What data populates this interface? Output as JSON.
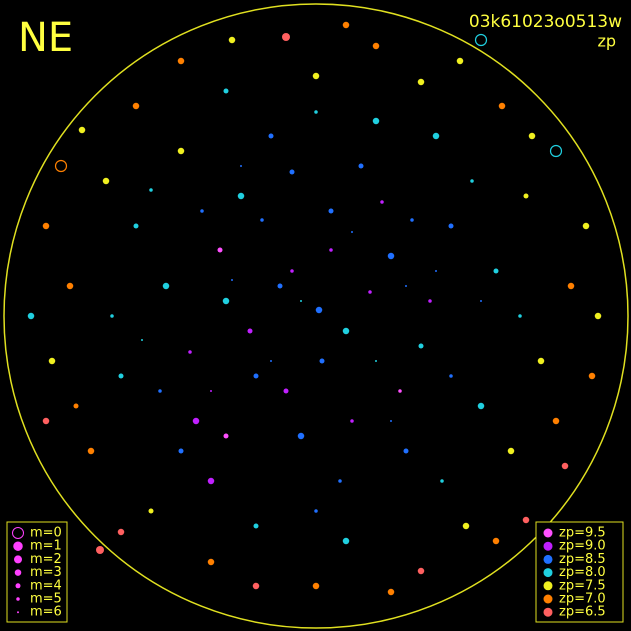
{
  "header": {
    "title": "NE",
    "frame": "03k61023o0513w",
    "mode": "zp"
  },
  "legend_m": [
    {
      "label": "m=0",
      "m": 0
    },
    {
      "label": "m=1",
      "m": 1
    },
    {
      "label": "m=2",
      "m": 2
    },
    {
      "label": "m=3",
      "m": 3
    },
    {
      "label": "m=4",
      "m": 4
    },
    {
      "label": "m=5",
      "m": 5
    },
    {
      "label": "m=6",
      "m": 6
    }
  ],
  "legend_zp": [
    {
      "label": "zp=9.5",
      "zp": 9.5,
      "color": "#ff50ff"
    },
    {
      "label": "zp=9.0",
      "zp": 9.0,
      "color": "#c020ff"
    },
    {
      "label": "zp=8.5",
      "zp": 8.5,
      "color": "#2070ff"
    },
    {
      "label": "zp=8.0",
      "zp": 8.0,
      "color": "#20d0e0"
    },
    {
      "label": "zp=7.5",
      "zp": 7.5,
      "color": "#f0f020"
    },
    {
      "label": "zp=7.0",
      "zp": 7.0,
      "color": "#ff8000"
    },
    {
      "label": "zp=6.5",
      "zp": 6.5,
      "color": "#ff6060"
    }
  ],
  "stars": [
    [
      0.01,
      0.02,
      3,
      8.5
    ],
    [
      -0.12,
      0.1,
      4,
      8.5
    ],
    [
      0.1,
      -0.05,
      3,
      8.0
    ],
    [
      -0.2,
      -0.2,
      4,
      8.5
    ],
    [
      0.25,
      0.2,
      3,
      8.5
    ],
    [
      -0.3,
      0.05,
      3,
      8.0
    ],
    [
      0.05,
      0.35,
      4,
      8.5
    ],
    [
      -0.05,
      -0.4,
      3,
      8.5
    ],
    [
      0.35,
      -0.1,
      4,
      8.0
    ],
    [
      -0.4,
      -0.35,
      3,
      9.0
    ],
    [
      0.15,
      0.5,
      4,
      8.5
    ],
    [
      -0.25,
      0.4,
      3,
      8.0
    ],
    [
      0.45,
      0.3,
      4,
      8.5
    ],
    [
      -0.5,
      0.1,
      3,
      8.0
    ],
    [
      0.3,
      -0.45,
      4,
      8.5
    ],
    [
      -0.35,
      -0.55,
      3,
      9.0
    ],
    [
      0.55,
      -0.3,
      3,
      8.0
    ],
    [
      -0.6,
      0.3,
      4,
      8.0
    ],
    [
      0.2,
      0.65,
      3,
      8.0
    ],
    [
      -0.15,
      0.6,
      4,
      8.5
    ],
    [
      0.6,
      0.15,
      4,
      8.0
    ],
    [
      -0.45,
      0.55,
      3,
      7.5
    ],
    [
      0.4,
      0.6,
      3,
      8.0
    ],
    [
      -0.65,
      -0.2,
      4,
      8.0
    ],
    [
      0.65,
      -0.45,
      3,
      7.5
    ],
    [
      -0.2,
      -0.7,
      4,
      8.0
    ],
    [
      0.1,
      -0.75,
      3,
      8.0
    ],
    [
      -0.7,
      0.45,
      3,
      7.5
    ],
    [
      0.7,
      0.4,
      4,
      7.5
    ],
    [
      -0.75,
      -0.45,
      3,
      7.0
    ],
    [
      0.75,
      -0.15,
      3,
      7.5
    ],
    [
      -0.55,
      -0.65,
      4,
      7.5
    ],
    [
      0.5,
      -0.7,
      3,
      7.5
    ],
    [
      0.0,
      0.8,
      3,
      7.5
    ],
    [
      -0.3,
      0.75,
      4,
      8.0
    ],
    [
      0.35,
      0.78,
      3,
      7.5
    ],
    [
      -0.82,
      0.1,
      3,
      7.0
    ],
    [
      0.85,
      0.1,
      3,
      7.0
    ],
    [
      -0.8,
      -0.3,
      4,
      7.0
    ],
    [
      0.8,
      -0.35,
      3,
      7.0
    ],
    [
      -0.6,
      0.7,
      3,
      7.0
    ],
    [
      0.62,
      0.7,
      3,
      7.0
    ],
    [
      -0.65,
      -0.72,
      3,
      6.5
    ],
    [
      0.6,
      -0.75,
      3,
      7.0
    ],
    [
      0.0,
      -0.9,
      3,
      7.0
    ],
    [
      -0.2,
      -0.9,
      3,
      6.5
    ],
    [
      0.25,
      -0.92,
      3,
      7.0
    ],
    [
      -0.9,
      0.3,
      3,
      7.0
    ],
    [
      0.9,
      0.3,
      3,
      7.5
    ],
    [
      -0.88,
      -0.15,
      3,
      7.5
    ],
    [
      0.92,
      -0.2,
      3,
      7.0
    ],
    [
      -0.1,
      0.93,
      2,
      6.5
    ],
    [
      0.2,
      0.9,
      3,
      7.0
    ],
    [
      -0.45,
      0.85,
      3,
      7.0
    ],
    [
      0.48,
      0.85,
      3,
      7.5
    ],
    [
      -0.85,
      0.5,
      0,
      7.0
    ],
    [
      0.8,
      0.55,
      0,
      8.0
    ],
    [
      -0.72,
      -0.78,
      2,
      6.5
    ],
    [
      0.7,
      -0.68,
      3,
      6.5
    ],
    [
      0.55,
      0.92,
      0,
      8.0
    ],
    [
      -0.08,
      0.15,
      5,
      9.0
    ],
    [
      0.18,
      0.08,
      5,
      9.0
    ],
    [
      -0.22,
      -0.05,
      4,
      9.0
    ],
    [
      0.28,
      -0.25,
      5,
      9.5
    ],
    [
      -0.1,
      -0.25,
      4,
      9.0
    ],
    [
      0.05,
      0.22,
      5,
      9.0
    ],
    [
      -0.32,
      0.22,
      4,
      9.5
    ],
    [
      0.38,
      0.05,
      5,
      9.0
    ],
    [
      -0.42,
      -0.12,
      5,
      9.0
    ],
    [
      0.12,
      -0.35,
      5,
      9.0
    ],
    [
      -0.3,
      -0.4,
      4,
      9.5
    ],
    [
      0.22,
      0.38,
      5,
      9.0
    ],
    [
      -0.18,
      0.32,
      5,
      8.5
    ],
    [
      0.02,
      -0.15,
      4,
      8.5
    ],
    [
      0.32,
      0.32,
      5,
      8.5
    ],
    [
      -0.38,
      0.35,
      5,
      8.5
    ],
    [
      0.45,
      -0.2,
      5,
      8.5
    ],
    [
      -0.08,
      0.48,
      4,
      8.5
    ],
    [
      0.08,
      -0.55,
      5,
      8.5
    ],
    [
      -0.52,
      -0.25,
      5,
      8.5
    ],
    [
      0.52,
      0.45,
      5,
      8.0
    ],
    [
      -0.55,
      0.42,
      5,
      8.0
    ],
    [
      0.42,
      -0.55,
      5,
      8.0
    ],
    [
      -0.45,
      -0.45,
      4,
      8.5
    ],
    [
      0.68,
      0.0,
      5,
      8.0
    ],
    [
      -0.68,
      0.0,
      5,
      8.0
    ],
    [
      0.0,
      0.68,
      5,
      8.0
    ],
    [
      0.0,
      -0.65,
      5,
      8.5
    ],
    [
      0.3,
      0.1,
      6,
      8.5
    ],
    [
      -0.15,
      -0.15,
      6,
      8.5
    ],
    [
      0.12,
      0.28,
      6,
      8.5
    ],
    [
      -0.28,
      0.12,
      6,
      8.5
    ],
    [
      0.2,
      -0.15,
      6,
      8.0
    ],
    [
      -0.05,
      0.05,
      6,
      8.0
    ],
    [
      0.4,
      0.15,
      6,
      8.5
    ],
    [
      -0.35,
      -0.25,
      6,
      9.0
    ],
    [
      0.25,
      -0.35,
      6,
      8.5
    ],
    [
      -0.25,
      0.5,
      6,
      8.5
    ],
    [
      0.55,
      0.05,
      6,
      8.5
    ],
    [
      -0.58,
      -0.08,
      6,
      8.0
    ],
    [
      0.72,
      0.6,
      3,
      7.5
    ],
    [
      -0.78,
      0.62,
      3,
      7.5
    ],
    [
      0.83,
      -0.5,
      3,
      6.5
    ],
    [
      -0.9,
      -0.35,
      3,
      6.5
    ],
    [
      0.35,
      -0.85,
      3,
      6.5
    ],
    [
      -0.35,
      -0.82,
      3,
      7.0
    ],
    [
      0.1,
      0.97,
      3,
      7.0
    ],
    [
      -0.28,
      0.92,
      3,
      7.5
    ],
    [
      0.94,
      0.0,
      3,
      7.5
    ],
    [
      -0.95,
      0.0,
      3,
      8.0
    ]
  ]
}
